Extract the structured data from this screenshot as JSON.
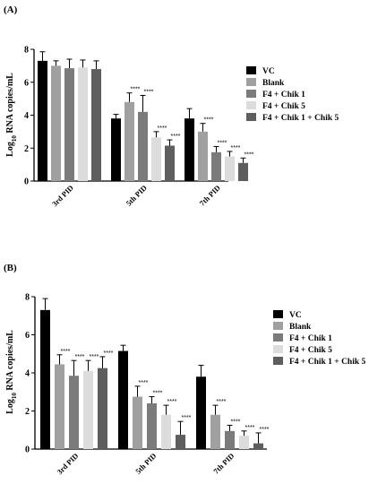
{
  "chart_data": [
    {
      "type": "bar",
      "panel_label": "(A)",
      "categories": [
        "3rd PID",
        "5th PID",
        "7th PID"
      ],
      "ylabel": "Log10 RNA copies/mL",
      "ylabel_main": "Log",
      "ylabel_sub": "10",
      "ylabel_rest": " RNA copies/mL",
      "ylim": [
        0,
        8
      ],
      "yticks": [
        "0",
        "2",
        "4",
        "6",
        "8"
      ],
      "series": [
        {
          "name": "VC",
          "color": "#000000",
          "values": [
            7.3,
            3.8,
            3.8
          ],
          "errors": [
            0.55,
            0.25,
            0.6
          ],
          "sig": [
            "",
            "",
            ""
          ]
        },
        {
          "name": "Blank",
          "color": "#a0a0a0",
          "values": [
            7.0,
            4.8,
            3.0
          ],
          "errors": [
            0.3,
            0.55,
            0.5
          ],
          "sig": [
            "",
            "****",
            "****"
          ]
        },
        {
          "name": "F4 + Chik 1",
          "color": "#7b7b7b",
          "values": [
            6.85,
            4.2,
            1.75
          ],
          "errors": [
            0.55,
            1.0,
            0.35
          ],
          "sig": [
            "",
            "****",
            "****"
          ]
        },
        {
          "name": "F4 + Chik 5",
          "color": "#dcdcdc",
          "values": [
            6.9,
            2.65,
            1.5
          ],
          "errors": [
            0.45,
            0.35,
            0.3
          ],
          "sig": [
            "",
            "****",
            "****"
          ]
        },
        {
          "name": "F4 + Chik 1 + Chik 5",
          "color": "#5e5e5e",
          "values": [
            6.8,
            2.15,
            1.1
          ],
          "errors": [
            0.5,
            0.35,
            0.3
          ],
          "sig": [
            "",
            "****",
            "****"
          ]
        }
      ]
    },
    {
      "type": "bar",
      "panel_label": "(B)",
      "categories": [
        "3rd PID",
        "5th PID",
        "7th PID"
      ],
      "ylabel": "Log10 RNA copies/mL",
      "ylabel_main": "Log",
      "ylabel_sub": "10",
      "ylabel_rest": " RNA copies/mL",
      "ylim": [
        0,
        8
      ],
      "yticks": [
        "0",
        "2",
        "4",
        "6",
        "8"
      ],
      "series": [
        {
          "name": "VC",
          "color": "#000000",
          "values": [
            7.3,
            5.15,
            3.8
          ],
          "errors": [
            0.6,
            0.3,
            0.6
          ],
          "sig": [
            "",
            "",
            ""
          ]
        },
        {
          "name": "Blank",
          "color": "#a0a0a0",
          "values": [
            4.45,
            2.75,
            1.8
          ],
          "errors": [
            0.5,
            0.55,
            0.5
          ],
          "sig": [
            "****",
            "****",
            "****"
          ]
        },
        {
          "name": "F4 + Chik 1",
          "color": "#7b7b7b",
          "values": [
            3.85,
            2.4,
            0.95
          ],
          "errors": [
            0.8,
            0.35,
            0.3
          ],
          "sig": [
            "****",
            "****",
            "****"
          ]
        },
        {
          "name": "F4 + Chik 5",
          "color": "#dcdcdc",
          "values": [
            4.1,
            1.8,
            0.7
          ],
          "errors": [
            0.55,
            0.5,
            0.25
          ],
          "sig": [
            "****",
            "****",
            "****"
          ]
        },
        {
          "name": "F4 + Chik 1 + Chik 5",
          "color": "#5e5e5e",
          "values": [
            4.25,
            0.75,
            0.3
          ],
          "errors": [
            0.6,
            0.7,
            0.55
          ],
          "sig": [
            "****",
            "****",
            "****"
          ]
        }
      ]
    }
  ]
}
